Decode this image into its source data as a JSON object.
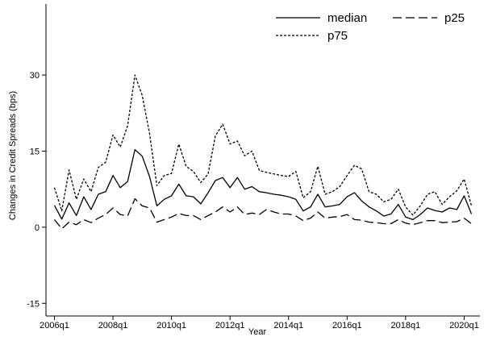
{
  "chart_data": {
    "type": "line",
    "xlabel": "Year",
    "ylabel": "Changes in Credit Spreads (bps)",
    "title": "",
    "xlim": [
      0,
      58
    ],
    "ylim": [
      -17.5,
      44
    ],
    "x_ticks": [
      {
        "pos": 0,
        "label": "2006q1"
      },
      {
        "pos": 8,
        "label": "2008q1"
      },
      {
        "pos": 16,
        "label": "2010q1"
      },
      {
        "pos": 24,
        "label": "2012q1"
      },
      {
        "pos": 32,
        "label": "2014q1"
      },
      {
        "pos": 40,
        "label": "2016q1"
      },
      {
        "pos": 48,
        "label": "2018q1"
      },
      {
        "pos": 56,
        "label": "2020q1"
      }
    ],
    "y_ticks": [
      -15,
      0,
      15,
      30
    ],
    "grid": false,
    "legend": {
      "position": "top-right",
      "columns": 2
    },
    "x": [
      "2006q1",
      "2006q2",
      "2006q3",
      "2006q4",
      "2007q1",
      "2007q2",
      "2007q3",
      "2007q4",
      "2008q1",
      "2008q2",
      "2008q3",
      "2008q4",
      "2009q1",
      "2009q2",
      "2009q3",
      "2009q4",
      "2010q1",
      "2010q2",
      "2010q3",
      "2010q4",
      "2011q1",
      "2011q2",
      "2011q3",
      "2011q4",
      "2012q1",
      "2012q2",
      "2012q3",
      "2012q4",
      "2013q1",
      "2013q2",
      "2013q3",
      "2013q4",
      "2014q1",
      "2014q2",
      "2014q3",
      "2014q4",
      "2015q1",
      "2015q2",
      "2015q3",
      "2015q4",
      "2016q1",
      "2016q2",
      "2016q3",
      "2016q4",
      "2017q1",
      "2017q2",
      "2017q3",
      "2017q4",
      "2018q1",
      "2018q2",
      "2018q3",
      "2018q4",
      "2019q1",
      "2019q2",
      "2019q3",
      "2019q4",
      "2020q1",
      "2020q2"
    ],
    "series": [
      {
        "name": "median",
        "dash": "solid",
        "values": [
          4.3,
          1.6,
          4.8,
          2.3,
          6.0,
          3.5,
          6.5,
          7.0,
          10.2,
          7.8,
          9.0,
          15.3,
          14.0,
          10.0,
          4.2,
          5.5,
          6.2,
          8.5,
          6.2,
          6.0,
          4.6,
          6.8,
          9.2,
          9.8,
          7.8,
          9.8,
          7.5,
          8.0,
          7.0,
          6.8,
          6.5,
          6.3,
          6.0,
          5.5,
          3.2,
          4.0,
          6.5,
          4.0,
          4.2,
          4.5,
          6.0,
          6.8,
          5.2,
          4.0,
          3.2,
          2.2,
          2.6,
          4.5,
          2.0,
          1.5,
          2.5,
          3.8,
          3.3,
          3.0,
          3.8,
          3.5,
          6.2,
          2.6
        ]
      },
      {
        "name": "p25",
        "dash": "longdash",
        "values": [
          1.5,
          -0.3,
          1.0,
          0.5,
          1.5,
          0.9,
          1.8,
          2.5,
          3.8,
          2.5,
          2.2,
          5.6,
          4.2,
          3.8,
          1.0,
          1.5,
          2.0,
          2.7,
          2.3,
          2.3,
          1.5,
          2.3,
          3.0,
          4.0,
          3.0,
          4.0,
          2.5,
          2.8,
          2.5,
          3.5,
          3.0,
          2.6,
          2.6,
          2.2,
          1.3,
          1.8,
          3.0,
          1.8,
          2.0,
          2.1,
          2.5,
          1.5,
          1.4,
          1.0,
          0.9,
          0.7,
          0.7,
          1.5,
          0.8,
          0.5,
          0.9,
          1.3,
          1.3,
          0.9,
          1.0,
          1.1,
          1.8,
          0.7
        ]
      },
      {
        "name": "p75",
        "dash": "shortdash",
        "values": [
          7.8,
          3.2,
          11.3,
          5.5,
          9.5,
          7.0,
          11.8,
          12.8,
          18.2,
          15.8,
          20.0,
          30.0,
          26.0,
          18.5,
          8.2,
          10.2,
          10.6,
          16.4,
          12.0,
          11.0,
          8.8,
          10.5,
          18.0,
          20.3,
          16.4,
          17.0,
          14.1,
          15.0,
          11.2,
          10.8,
          10.5,
          10.2,
          10.0,
          11.0,
          5.8,
          7.0,
          12.0,
          6.5,
          7.0,
          8.0,
          10.2,
          12.2,
          11.5,
          7.0,
          6.5,
          5.0,
          5.5,
          7.5,
          4.0,
          2.4,
          4.2,
          6.5,
          7.0,
          4.5,
          6.0,
          7.2,
          9.5,
          4.2
        ]
      }
    ]
  }
}
